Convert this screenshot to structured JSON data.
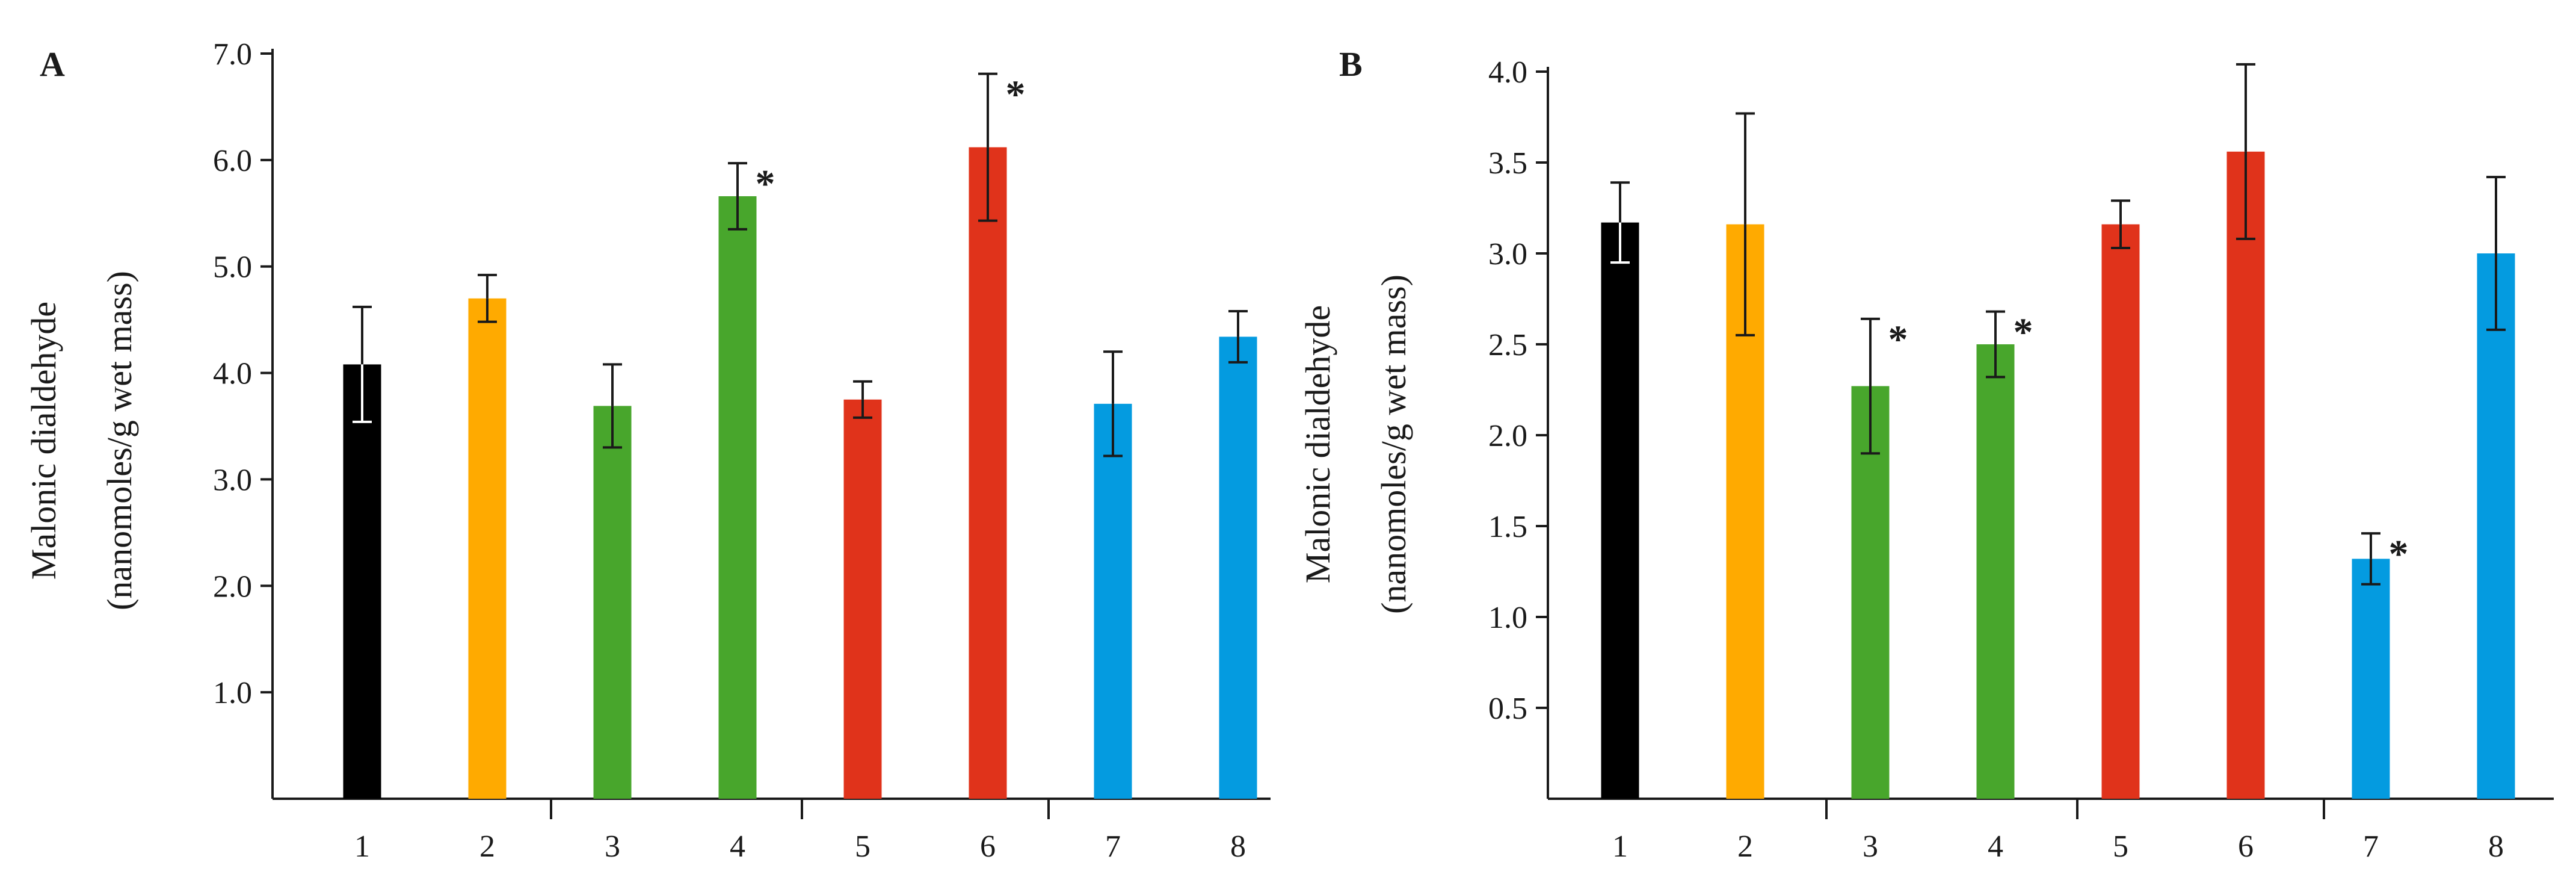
{
  "chart_data": [
    {
      "panel": "A",
      "type": "bar",
      "ylabel_line1": "Malonic dialdehyde",
      "ylabel_line2": "(nanomoles/g wet mass)",
      "ylim": [
        0,
        7.0
      ],
      "ytick_labels": [
        "1.0",
        "2.0",
        "3.0",
        "4.0",
        "5.0",
        "6.0",
        "7.0"
      ],
      "categories": [
        "1",
        "2",
        "3",
        "4",
        "5",
        "6",
        "7",
        "8"
      ],
      "values": [
        4.08,
        4.7,
        3.69,
        5.66,
        3.75,
        6.12,
        3.71,
        4.34
      ],
      "errors": [
        0.54,
        0.22,
        0.39,
        0.31,
        0.17,
        0.69,
        0.49,
        0.24
      ],
      "colors": [
        "#000000",
        "#ffaa00",
        "#48a62c",
        "#48a62c",
        "#e0331b",
        "#e0331b",
        "#049be0",
        "#049be0"
      ],
      "significant": [
        false,
        false,
        false,
        true,
        false,
        true,
        false,
        false
      ],
      "significance_mark": "*"
    },
    {
      "panel": "B",
      "type": "bar",
      "ylabel_line1": "Malonic dialdehyde",
      "ylabel_line2": "(nanomoles/g wet mass)",
      "ylim": [
        0,
        4.0
      ],
      "ytick_labels": [
        "0.5",
        "1.0",
        "1.5",
        "2.0",
        "2.5",
        "3.0",
        "3.5",
        "4.0"
      ],
      "categories": [
        "1",
        "2",
        "3",
        "4",
        "5",
        "6",
        "7",
        "8"
      ],
      "values": [
        3.17,
        3.16,
        2.27,
        2.5,
        3.16,
        3.56,
        1.32,
        3.0
      ],
      "errors": [
        0.22,
        0.61,
        0.37,
        0.18,
        0.13,
        0.48,
        0.14,
        0.42
      ],
      "colors": [
        "#000000",
        "#ffaa00",
        "#48a62c",
        "#48a62c",
        "#e0331b",
        "#e0331b",
        "#049be0",
        "#049be0"
      ],
      "significant": [
        false,
        false,
        true,
        true,
        false,
        false,
        true,
        false
      ],
      "significance_mark": "*"
    }
  ]
}
